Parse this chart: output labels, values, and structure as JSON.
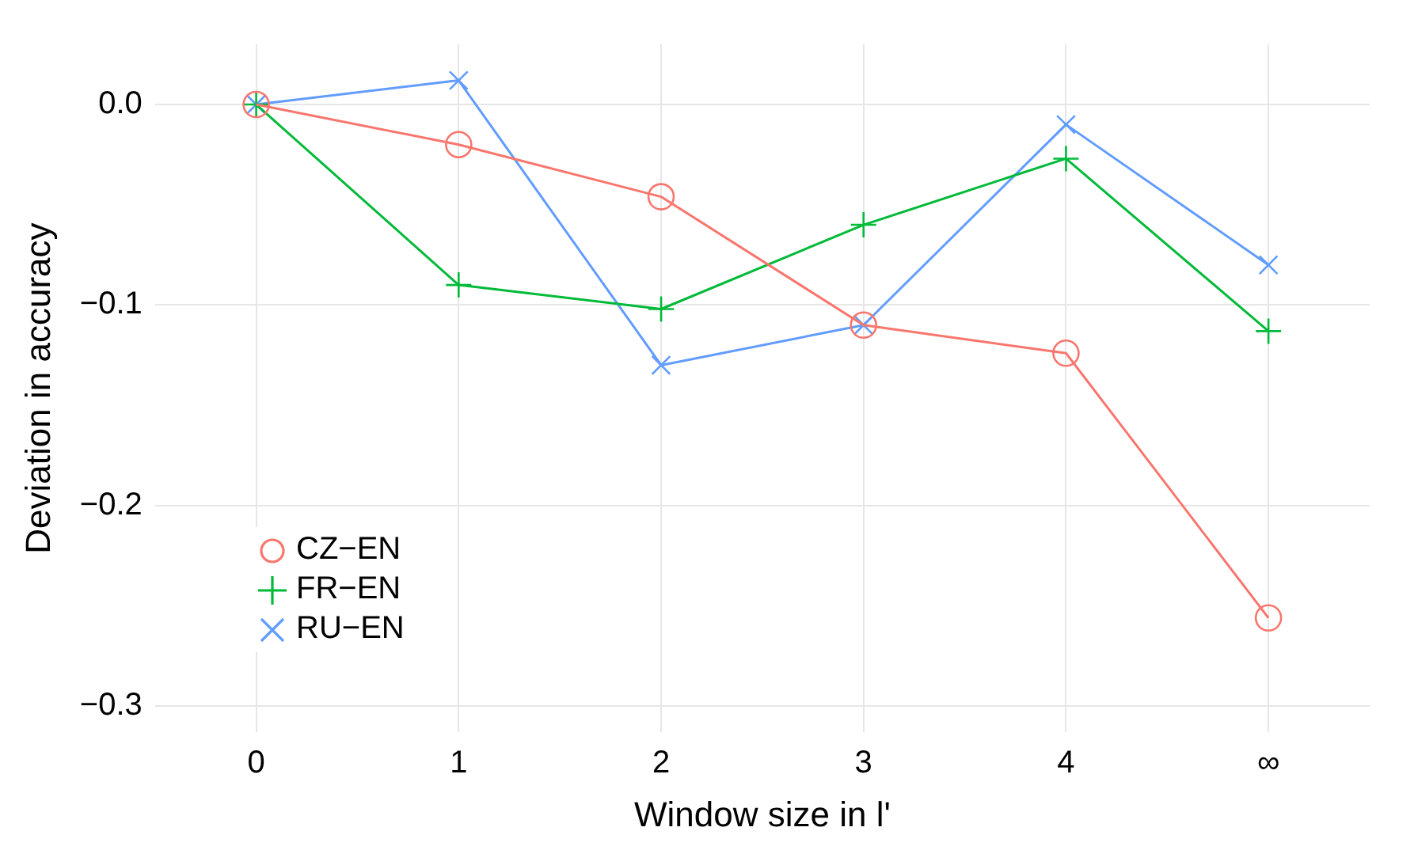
{
  "chart_data": {
    "type": "line",
    "xlabel": "Window size in l'",
    "ylabel": "Deviation in accuracy",
    "categories": [
      "0",
      "1",
      "2",
      "3",
      "4",
      "∞"
    ],
    "series": [
      {
        "name": "CZ−EN",
        "color": "#f8766d",
        "marker": "circle",
        "values": [
          0,
          -0.02,
          -0.046,
          -0.11,
          -0.124,
          -0.256
        ]
      },
      {
        "name": "FR−EN",
        "color": "#00ba38",
        "marker": "cross",
        "values": [
          0,
          -0.09,
          -0.102,
          -0.06,
          -0.027,
          -0.113
        ]
      },
      {
        "name": "RU−EN",
        "color": "#619cff",
        "marker": "x",
        "values": [
          0,
          0.012,
          -0.13,
          -0.11,
          -0.01,
          -0.08
        ]
      }
    ],
    "ylim": [
      -0.313,
      0.03
    ],
    "yticks": [
      {
        "value": 0,
        "label": "0.0"
      },
      {
        "value": -0.1,
        "label": "−0.1"
      },
      {
        "value": -0.2,
        "label": "−0.2"
      },
      {
        "value": -0.3,
        "label": "−0.3"
      }
    ],
    "grid": true,
    "legend": "bottom left",
    "line_style": "solid"
  }
}
